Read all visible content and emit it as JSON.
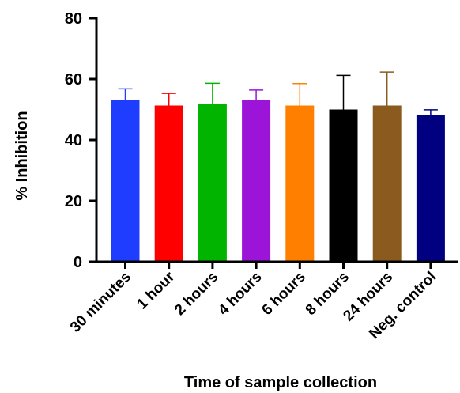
{
  "chart_data": {
    "type": "bar",
    "title": "",
    "xlabel": "Time of sample collection",
    "ylabel": "% Inhibition",
    "ylim": [
      0,
      80
    ],
    "yticks": [
      0,
      20,
      40,
      60,
      80
    ],
    "grid": false,
    "legend": "none",
    "categories": [
      "30 minutes",
      "1 hour",
      "2 hours",
      "4 hours",
      "6 hours",
      "8 hours",
      "24 hours",
      "Neg. control"
    ],
    "values": [
      53.2,
      51.3,
      51.8,
      53.2,
      51.3,
      50.0,
      51.3,
      48.3
    ],
    "error_upper": [
      3.6,
      4.0,
      6.8,
      3.2,
      7.2,
      11.2,
      11.0,
      1.6
    ],
    "colors": [
      "#1f3dff",
      "#ff0000",
      "#00b400",
      "#9b14d8",
      "#ff8000",
      "#000000",
      "#8b5a1e",
      "#000080"
    ]
  }
}
